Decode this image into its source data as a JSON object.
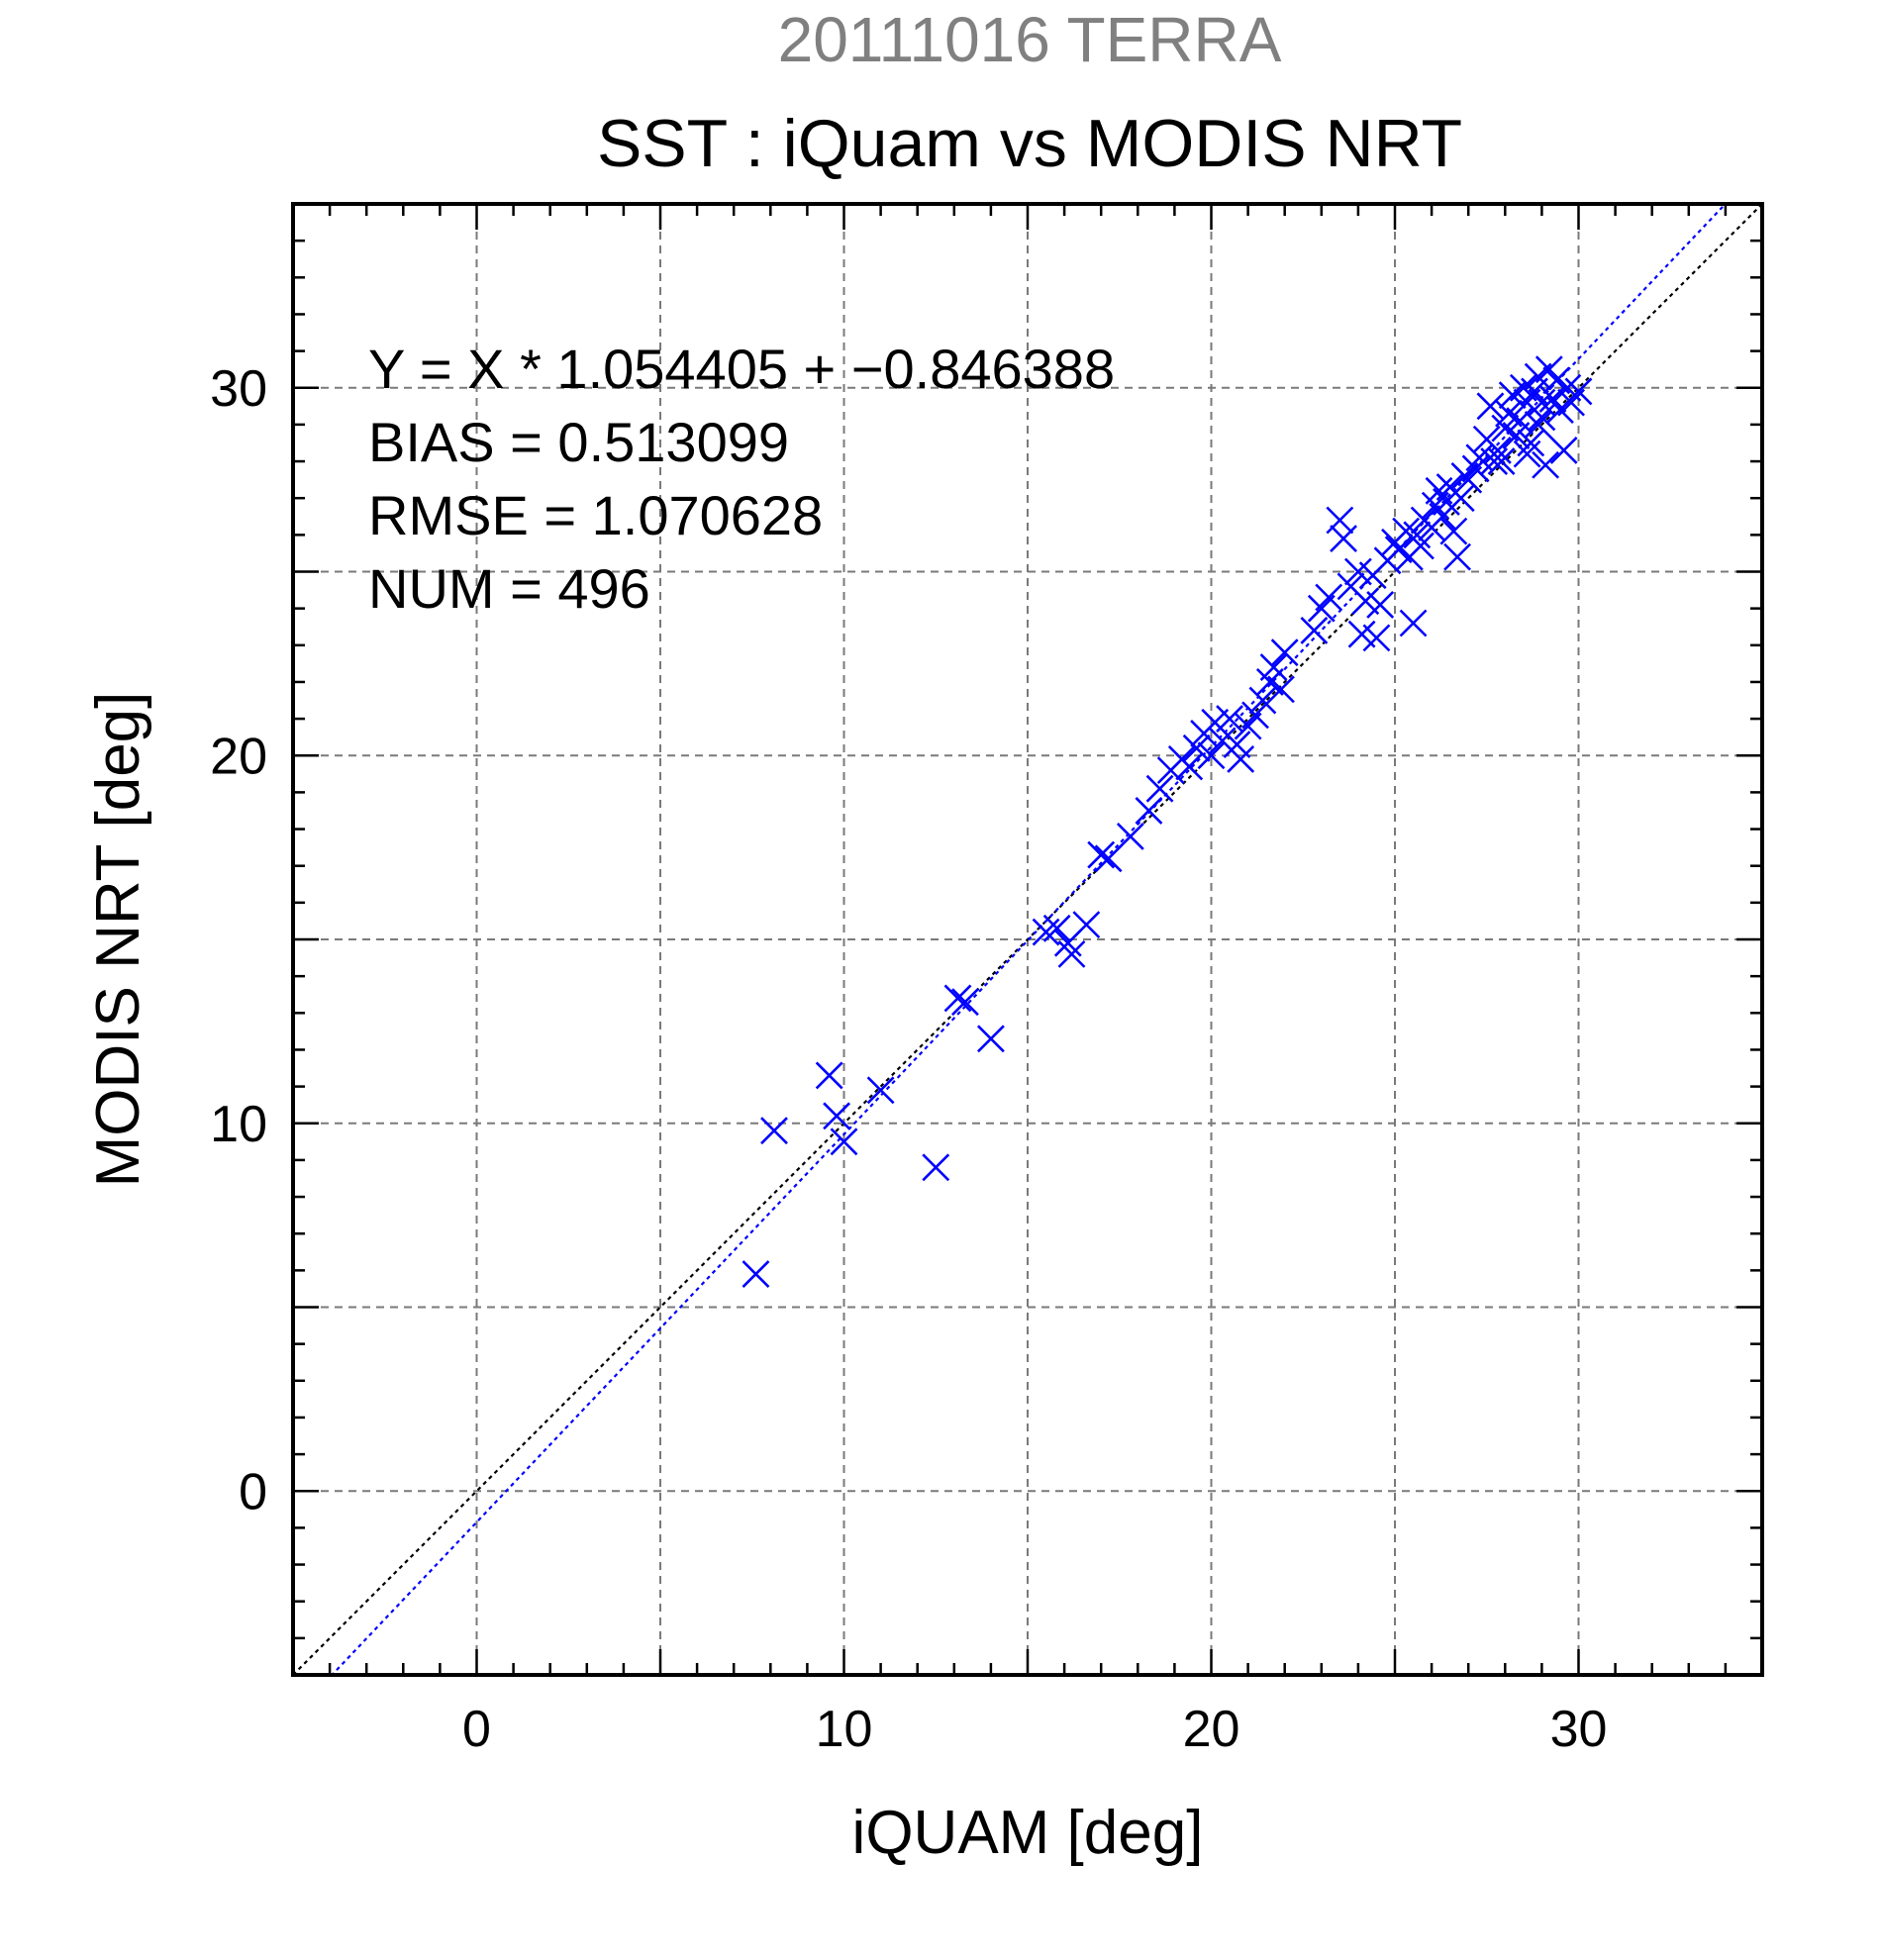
{
  "chart_data": {
    "type": "scatter",
    "supertitle": "20111016 TERRA",
    "title": "SST : iQuam vs MODIS NRT",
    "xlabel": "iQUAM [deg]",
    "ylabel": "MODIS NRT [deg]",
    "xlim": [
      -5,
      35
    ],
    "ylim": [
      -5,
      35
    ],
    "xticks": [
      0,
      10,
      20,
      30
    ],
    "yticks": [
      0,
      10,
      20,
      30
    ],
    "xtick_labels": [
      "0",
      "10",
      "20",
      "30"
    ],
    "ytick_labels": [
      "0",
      "10",
      "20",
      "30"
    ],
    "grid": true,
    "marker": "x",
    "marker_color": "#0000ff",
    "annotations": [
      "Y = X * 1.054405 + −0.846388",
      "BIAS = 0.513099",
      "RMSE = 1.070628",
      "NUM = 496"
    ],
    "lines": [
      {
        "kind": "one-to-one",
        "slope": 1.0,
        "intercept": 0.0,
        "color": "#000000",
        "style": "dotted"
      },
      {
        "kind": "regression",
        "slope": 1.054405,
        "intercept": -0.846388,
        "color": "#0000ff",
        "style": "dotted"
      }
    ],
    "series": [
      {
        "points": [
          [
            7.6,
            5.9
          ],
          [
            8.1,
            9.8
          ],
          [
            9.6,
            11.3
          ],
          [
            9.8,
            10.2
          ],
          [
            10.0,
            9.5
          ],
          [
            11.0,
            10.9
          ],
          [
            12.5,
            8.8
          ],
          [
            13.1,
            13.4
          ],
          [
            13.3,
            13.3
          ],
          [
            14.0,
            12.3
          ],
          [
            15.5,
            15.2
          ],
          [
            15.8,
            15.3
          ],
          [
            16.1,
            14.9
          ],
          [
            16.2,
            14.6
          ],
          [
            16.6,
            15.4
          ],
          [
            17.0,
            17.3
          ],
          [
            17.2,
            17.2
          ],
          [
            17.8,
            17.8
          ],
          [
            18.3,
            18.5
          ],
          [
            18.6,
            19.1
          ],
          [
            18.9,
            19.6
          ],
          [
            19.2,
            19.9
          ],
          [
            19.4,
            19.7
          ],
          [
            19.6,
            20.2
          ],
          [
            19.8,
            20.6
          ],
          [
            20.0,
            20.0
          ],
          [
            20.1,
            20.9
          ],
          [
            20.3,
            20.4
          ],
          [
            20.5,
            21.0
          ],
          [
            20.7,
            20.3
          ],
          [
            20.8,
            19.9
          ],
          [
            21.0,
            20.8
          ],
          [
            21.2,
            21.1
          ],
          [
            21.4,
            21.5
          ],
          [
            21.6,
            22.0
          ],
          [
            21.7,
            22.4
          ],
          [
            21.9,
            21.8
          ],
          [
            22.0,
            22.8
          ],
          [
            22.8,
            23.4
          ],
          [
            23.0,
            24.0
          ],
          [
            23.2,
            24.3
          ],
          [
            23.5,
            26.4
          ],
          [
            23.6,
            25.9
          ],
          [
            23.8,
            24.6
          ],
          [
            24.0,
            25.0
          ],
          [
            24.1,
            23.3
          ],
          [
            24.2,
            24.2
          ],
          [
            24.4,
            24.9
          ],
          [
            24.5,
            23.2
          ],
          [
            24.6,
            24.1
          ],
          [
            24.8,
            25.3
          ],
          [
            25.0,
            25.8
          ],
          [
            25.1,
            25.6
          ],
          [
            25.3,
            26.1
          ],
          [
            25.4,
            25.4
          ],
          [
            25.5,
            23.6
          ],
          [
            25.6,
            26.0
          ],
          [
            25.7,
            25.7
          ],
          [
            25.8,
            26.4
          ],
          [
            26.0,
            26.2
          ],
          [
            26.1,
            26.8
          ],
          [
            26.2,
            27.2
          ],
          [
            26.3,
            26.5
          ],
          [
            26.4,
            26.9
          ],
          [
            26.5,
            27.3
          ],
          [
            26.6,
            26.1
          ],
          [
            26.7,
            25.4
          ],
          [
            26.8,
            27.0
          ],
          [
            27.0,
            27.5
          ],
          [
            27.2,
            27.8
          ],
          [
            27.3,
            28.1
          ],
          [
            27.5,
            28.6
          ],
          [
            27.6,
            29.5
          ],
          [
            27.7,
            28.0
          ],
          [
            27.8,
            28.3
          ],
          [
            28.0,
            28.9
          ],
          [
            28.1,
            29.3
          ],
          [
            28.2,
            29.8
          ],
          [
            28.3,
            28.7
          ],
          [
            28.4,
            29.1
          ],
          [
            28.5,
            30.0
          ],
          [
            28.6,
            29.6
          ],
          [
            28.7,
            28.5
          ],
          [
            28.8,
            29.9
          ],
          [
            28.9,
            30.3
          ],
          [
            29.0,
            29.2
          ],
          [
            29.1,
            27.9
          ],
          [
            29.2,
            30.5
          ],
          [
            29.3,
            29.7
          ],
          [
            29.4,
            30.2
          ],
          [
            29.5,
            29.4
          ],
          [
            29.6,
            28.3
          ],
          [
            29.7,
            30.0
          ],
          [
            29.8,
            29.6
          ],
          [
            30.0,
            29.9
          ],
          [
            28.9,
            29.0
          ],
          [
            29.0,
            29.6
          ],
          [
            28.6,
            28.2
          ],
          [
            27.9,
            28.0
          ],
          [
            26.9,
            27.6
          ]
        ]
      }
    ]
  }
}
